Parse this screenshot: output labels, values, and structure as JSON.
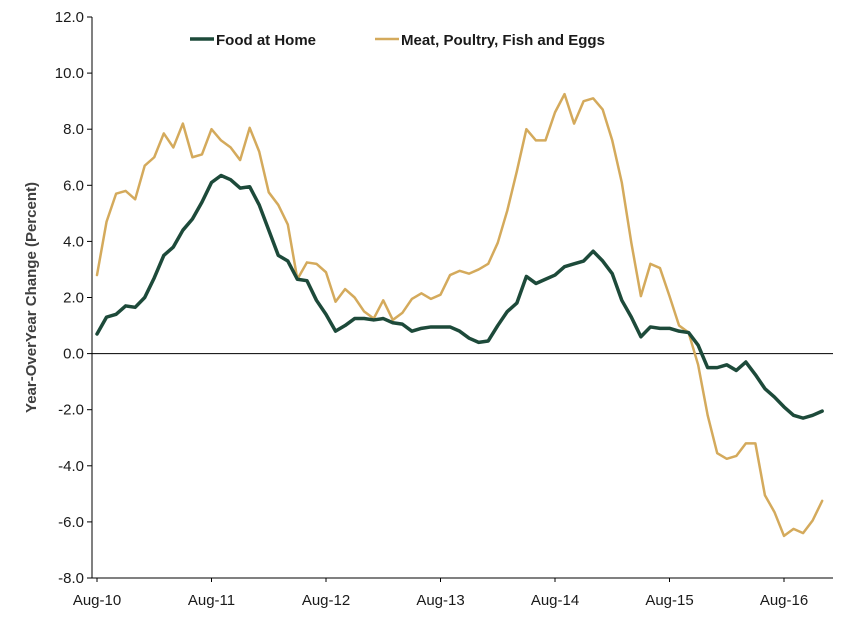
{
  "chart_data": {
    "type": "line",
    "title": "",
    "xlabel": "",
    "ylabel": "Year-OverYear Change (Percent)",
    "ylim": [
      -8,
      12
    ],
    "y_ticks": [
      "12.0",
      "10.0",
      "8.0",
      "6.0",
      "4.0",
      "2.0",
      "0.0",
      "-2.0",
      "-4.0",
      "-6.0",
      "-8.0"
    ],
    "x_ticks": [
      "Aug-10",
      "Aug-11",
      "Aug-12",
      "Aug-13",
      "Aug-14",
      "Aug-15",
      "Aug-16"
    ],
    "x_start": "Aug-10",
    "x_end": "Jan-17",
    "grid": false,
    "legend_position": "top",
    "series": [
      {
        "name": "Food at Home",
        "color": "#1d4a3a",
        "values": [
          0.7,
          1.3,
          1.4,
          1.7,
          1.65,
          2.0,
          2.7,
          3.5,
          3.8,
          4.4,
          4.8,
          5.4,
          6.1,
          6.35,
          6.2,
          5.9,
          5.95,
          5.3,
          4.4,
          3.5,
          3.3,
          2.65,
          2.6,
          1.9,
          1.4,
          0.8,
          1.0,
          1.25,
          1.25,
          1.2,
          1.25,
          1.1,
          1.05,
          0.8,
          0.9,
          0.95,
          0.95,
          0.95,
          0.8,
          0.55,
          0.4,
          0.45,
          1.0,
          1.5,
          1.8,
          2.75,
          2.5,
          2.65,
          2.8,
          3.1,
          3.2,
          3.3,
          3.65,
          3.3,
          2.85,
          1.9,
          1.3,
          0.6,
          0.95,
          0.9,
          0.9,
          0.8,
          0.75,
          0.3,
          -0.5,
          -0.5,
          -0.4,
          -0.6,
          -0.3,
          -0.75,
          -1.25,
          -1.55,
          -1.9,
          -2.2,
          -2.3,
          -2.2,
          -2.05
        ]
      },
      {
        "name": "Meat, Poultry, Fish and Eggs",
        "color": "#d4aa5c",
        "values": [
          2.8,
          4.7,
          5.7,
          5.8,
          5.5,
          6.7,
          7.0,
          7.85,
          7.35,
          8.2,
          7.0,
          7.1,
          8.0,
          7.6,
          7.35,
          6.9,
          8.05,
          7.2,
          5.75,
          5.3,
          4.6,
          2.65,
          3.25,
          3.2,
          2.9,
          1.85,
          2.3,
          2.0,
          1.5,
          1.25,
          1.9,
          1.2,
          1.45,
          1.95,
          2.15,
          1.95,
          2.1,
          2.8,
          2.95,
          2.85,
          3.0,
          3.2,
          3.95,
          5.1,
          6.5,
          8.0,
          7.6,
          7.6,
          8.6,
          9.25,
          8.2,
          9.0,
          9.1,
          8.7,
          7.6,
          6.1,
          3.95,
          2.05,
          3.2,
          3.05,
          2.05,
          1.0,
          0.75,
          -0.4,
          -2.2,
          -3.55,
          -3.75,
          -3.65,
          -3.2,
          -3.2,
          -5.05,
          -5.65,
          -6.5,
          -6.25,
          -6.4,
          -5.95,
          -5.25
        ]
      }
    ]
  }
}
